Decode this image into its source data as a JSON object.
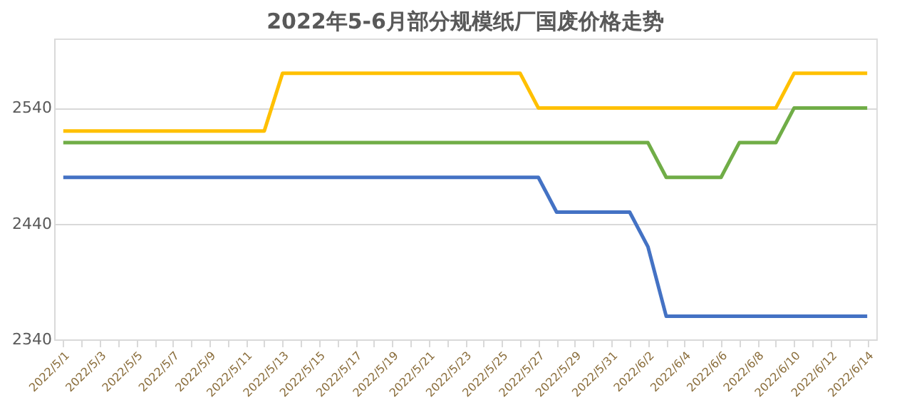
{
  "chart_data": {
    "type": "line",
    "title": "2022年5-6月部分规模纸厂国废价格走势",
    "categories": [
      "2022/5/1",
      null,
      "2022/5/3",
      null,
      "2022/5/5",
      null,
      "2022/5/7",
      null,
      "2022/5/9",
      null,
      "2022/5/11",
      null,
      "2022/5/13",
      null,
      "2022/5/15",
      null,
      "2022/5/17",
      null,
      "2022/5/19",
      null,
      "2022/5/21",
      null,
      "2022/5/23",
      null,
      "2022/5/25",
      null,
      "2022/5/27",
      null,
      "2022/5/29",
      null,
      "2022/5/31",
      null,
      "2022/6/2",
      null,
      "2022/6/4",
      null,
      "2022/6/6",
      null,
      "2022/6/8",
      null,
      "2022/6/10",
      null,
      "2022/6/12",
      null,
      "2022/6/14"
    ],
    "series": [
      {
        "color": "#ffc000",
        "values": [
          2520,
          2520,
          2520,
          2520,
          2520,
          2520,
          2520,
          2520,
          2520,
          2520,
          2520,
          2520,
          2570,
          2570,
          2570,
          2570,
          2570,
          2570,
          2570,
          2570,
          2570,
          2570,
          2570,
          2570,
          2570,
          2570,
          2540,
          2540,
          2540,
          2540,
          2540,
          2540,
          2540,
          2540,
          2540,
          2540,
          2540,
          2540,
          2540,
          2540,
          2570,
          2570,
          2570,
          2570,
          2570
        ]
      },
      {
        "color": "#70ad47",
        "values": [
          2510,
          2510,
          2510,
          2510,
          2510,
          2510,
          2510,
          2510,
          2510,
          2510,
          2510,
          2510,
          2510,
          2510,
          2510,
          2510,
          2510,
          2510,
          2510,
          2510,
          2510,
          2510,
          2510,
          2510,
          2510,
          2510,
          2510,
          2510,
          2510,
          2510,
          2510,
          2510,
          2510,
          2480,
          2480,
          2480,
          2480,
          2510,
          2510,
          2510,
          2540,
          2540,
          2540,
          2540,
          2540
        ]
      },
      {
        "color": "#4472c4",
        "values": [
          2480,
          2480,
          2480,
          2480,
          2480,
          2480,
          2480,
          2480,
          2480,
          2480,
          2480,
          2480,
          2480,
          2480,
          2480,
          2480,
          2480,
          2480,
          2480,
          2480,
          2480,
          2480,
          2480,
          2480,
          2480,
          2480,
          2480,
          2450,
          2450,
          2450,
          2450,
          2450,
          2420,
          2360,
          2360,
          2360,
          2360,
          2360,
          2360,
          2360,
          2360,
          2360,
          2360,
          2360,
          2360
        ]
      }
    ],
    "ylim": [
      2340,
      2600
    ],
    "yticks": [
      2340,
      2440,
      2540
    ],
    "grid": "y",
    "legend": false,
    "marker": "none",
    "line_style": "solid"
  }
}
